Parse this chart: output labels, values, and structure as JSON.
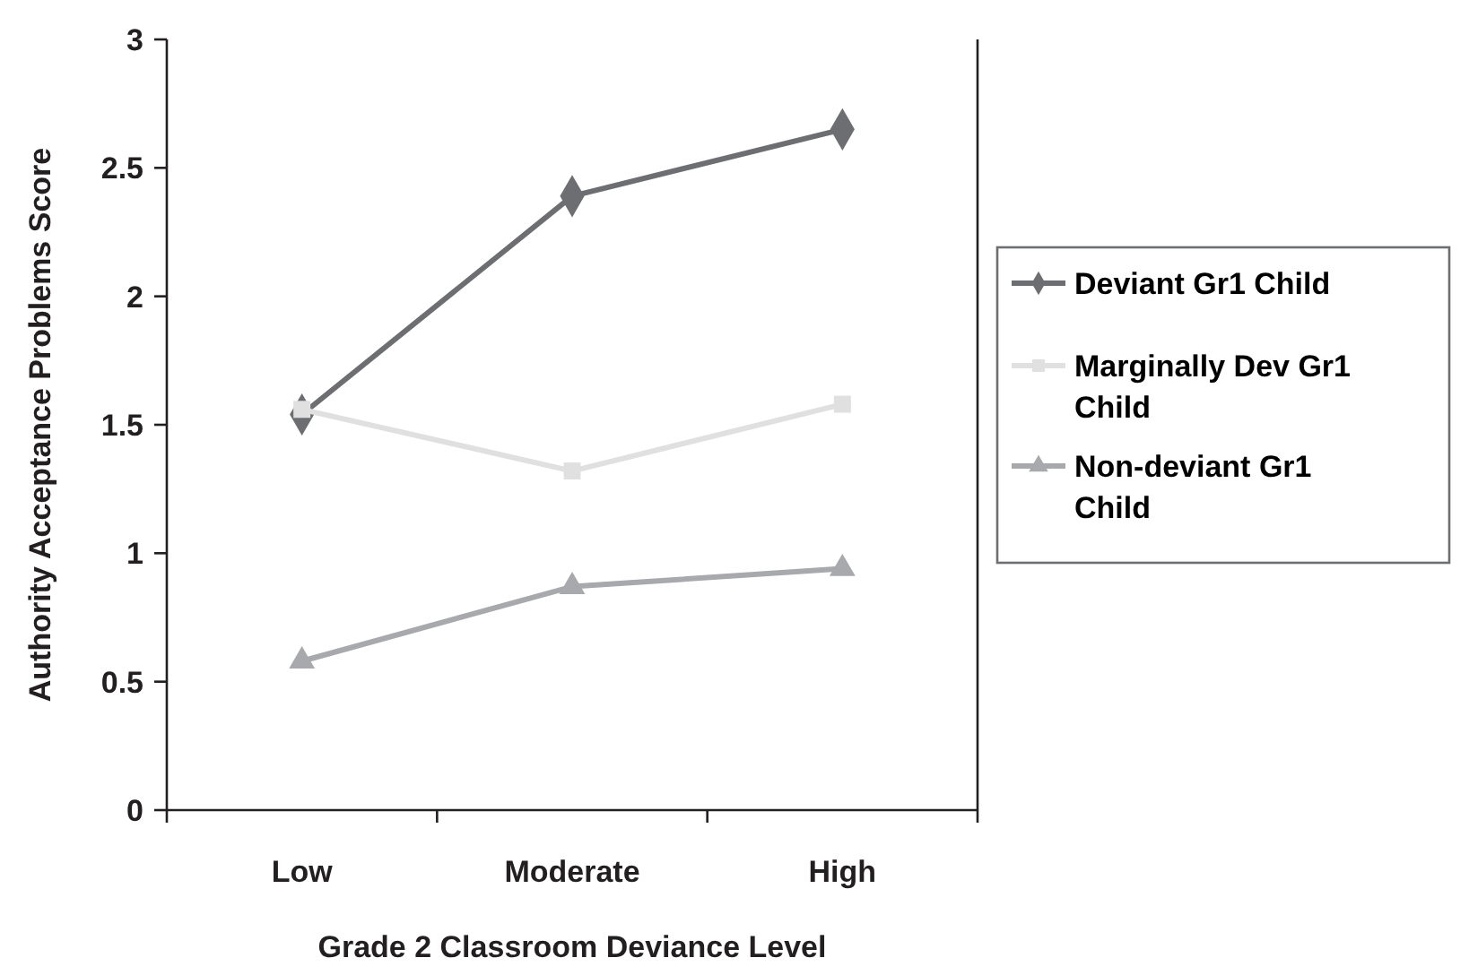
{
  "chart_data": {
    "type": "line",
    "xlabel": "Grade 2 Classroom Deviance Level",
    "ylabel": "Authority Acceptance Problems Score",
    "categories": [
      "Low",
      "Moderate",
      "High"
    ],
    "series": [
      {
        "name": "Deviant Gr1 Child",
        "color": "#6d6e71",
        "marker": "diamond",
        "values": [
          1.54,
          2.39,
          2.65
        ]
      },
      {
        "name": "Marginally Dev Gr1 Child",
        "color": "#e0e0e0",
        "marker": "square",
        "values": [
          1.56,
          1.32,
          1.58
        ]
      },
      {
        "name": "Non-deviant Gr1 Child",
        "color": "#a7a9ac",
        "marker": "triangle",
        "values": [
          0.58,
          0.87,
          0.94
        ]
      }
    ],
    "ylim": [
      0,
      3
    ],
    "yticks": [
      0,
      0.5,
      1,
      1.5,
      2,
      2.5,
      3
    ],
    "grid": false,
    "legend": "right",
    "line_style": "solid"
  }
}
